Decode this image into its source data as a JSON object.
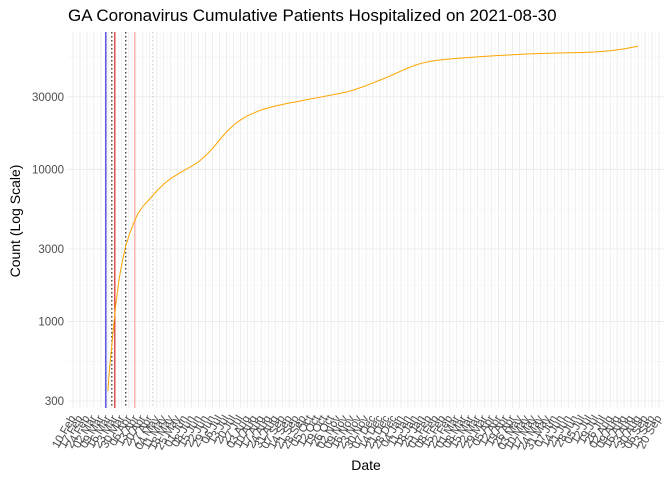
{
  "chart_data": {
    "type": "line",
    "title": "GA Coronavirus Cumulative Patients Hospitalized on 2021-08-30",
    "xlabel": "Date",
    "ylabel": "Count (Log Scale)",
    "y_scale": "log",
    "ylim": [
      270,
      80000
    ],
    "xlim": [
      "2020-02-05",
      "2021-09-25"
    ],
    "yticks": [
      300,
      1000,
      3000,
      10000,
      30000
    ],
    "ytick_labels": [
      "300",
      "1000",
      "3000",
      "10000",
      "30000"
    ],
    "x_tick_dates": [
      "2020-02-10",
      "2020-02-17",
      "2020-02-24",
      "2020-03-02",
      "2020-03-09",
      "2020-03-16",
      "2020-03-23",
      "2020-03-30",
      "2020-04-06",
      "2020-04-13",
      "2020-04-20",
      "2020-04-27",
      "2020-05-04",
      "2020-05-11",
      "2020-05-18",
      "2020-05-25",
      "2020-06-01",
      "2020-06-08",
      "2020-06-15",
      "2020-06-22",
      "2020-06-29",
      "2020-07-06",
      "2020-07-13",
      "2020-07-20",
      "2020-07-27",
      "2020-08-03",
      "2020-08-10",
      "2020-08-17",
      "2020-08-24",
      "2020-08-31",
      "2020-09-07",
      "2020-09-14",
      "2020-09-21",
      "2020-09-28",
      "2020-10-05",
      "2020-10-12",
      "2020-10-19",
      "2020-10-26",
      "2020-11-02",
      "2020-11-09",
      "2020-11-16",
      "2020-11-23",
      "2020-11-30",
      "2020-12-07",
      "2020-12-14",
      "2020-12-21",
      "2020-12-28",
      "2021-01-04",
      "2021-01-11",
      "2021-01-18",
      "2021-01-25",
      "2021-02-01",
      "2021-02-08",
      "2021-02-15",
      "2021-02-22",
      "2021-03-01",
      "2021-03-08",
      "2021-03-15",
      "2021-03-22",
      "2021-03-29",
      "2021-04-05",
      "2021-04-12",
      "2021-04-19",
      "2021-04-26",
      "2021-05-03",
      "2021-05-10",
      "2021-05-17",
      "2021-05-24",
      "2021-05-31",
      "2021-06-07",
      "2021-06-14",
      "2021-06-21",
      "2021-06-28",
      "2021-07-05",
      "2021-07-12",
      "2021-07-19",
      "2021-07-26",
      "2021-08-02",
      "2021-08-09",
      "2021-08-16",
      "2021-08-23",
      "2021-08-30",
      "2021-09-06",
      "2021-09-13",
      "2021-09-20"
    ],
    "x_tick_labels": [
      "10 Feb",
      "17 Feb",
      "24 Feb",
      "02 Mar",
      "09 Mar",
      "16 Mar",
      "23 Mar",
      "30 Mar",
      "06 Apr",
      "13 Apr",
      "20 Apr",
      "27 Apr",
      "04 May",
      "11 May",
      "18 May",
      "25 May",
      "01 Jun",
      "08 Jun",
      "15 Jun",
      "22 Jun",
      "29 Jun",
      "06 Jul",
      "13 Jul",
      "20 Jul",
      "27 Jul",
      "03 Aug",
      "10 Aug",
      "17 Aug",
      "24 Aug",
      "31 Aug",
      "07 Sep",
      "14 Sep",
      "21 Sep",
      "28 Sep",
      "05 Oct",
      "12 Oct",
      "19 Oct",
      "26 Oct",
      "02 Nov",
      "09 Nov",
      "16 Nov",
      "23 Nov",
      "30 Nov",
      "07 Dec",
      "14 Dec",
      "21 Dec",
      "28 Dec",
      "04 Jan",
      "11 Jan",
      "18 Jan",
      "25 Jan",
      "01 Feb",
      "08 Feb",
      "15 Feb",
      "22 Feb",
      "01 Mar",
      "08 Mar",
      "15 Mar",
      "22 Mar",
      "29 Mar",
      "05 Apr",
      "12 Apr",
      "19 Apr",
      "26 Apr",
      "03 May",
      "10 May",
      "17 May",
      "24 May",
      "31 May",
      "07 Jun",
      "14 Jun",
      "21 Jun",
      "28 Jun",
      "05 Jul",
      "12 Jul",
      "19 Jul",
      "26 Jul",
      "02 Aug",
      "09 Aug",
      "16 Aug",
      "23 Aug",
      "30 Aug",
      "06 Sep",
      "13 Sep",
      "20 Sep"
    ],
    "grid": true,
    "legend": "none",
    "series": [
      {
        "color": "#FFA500",
        "points": [
          [
            "2020-03-16",
            350
          ],
          [
            "2020-03-18",
            520
          ],
          [
            "2020-03-20",
            700
          ],
          [
            "2020-03-22",
            960
          ],
          [
            "2020-03-24",
            1300
          ],
          [
            "2020-03-27",
            1850
          ],
          [
            "2020-03-30",
            2400
          ],
          [
            "2020-04-03",
            3150
          ],
          [
            "2020-04-07",
            3800
          ],
          [
            "2020-04-11",
            4450
          ],
          [
            "2020-04-15",
            5100
          ],
          [
            "2020-04-20",
            5700
          ],
          [
            "2020-04-27",
            6400
          ],
          [
            "2020-05-04",
            7200
          ],
          [
            "2020-05-11",
            8000
          ],
          [
            "2020-05-18",
            8700
          ],
          [
            "2020-05-25",
            9300
          ],
          [
            "2020-06-01",
            9900
          ],
          [
            "2020-06-08",
            10500
          ],
          [
            "2020-06-15",
            11200
          ],
          [
            "2020-06-22",
            12300
          ],
          [
            "2020-06-29",
            13700
          ],
          [
            "2020-07-06",
            15600
          ],
          [
            "2020-07-13",
            17600
          ],
          [
            "2020-07-20",
            19500
          ],
          [
            "2020-07-27",
            21100
          ],
          [
            "2020-08-03",
            22500
          ],
          [
            "2020-08-10",
            23600
          ],
          [
            "2020-08-17",
            24600
          ],
          [
            "2020-08-24",
            25400
          ],
          [
            "2020-08-31",
            26100
          ],
          [
            "2020-09-07",
            26700
          ],
          [
            "2020-09-14",
            27300
          ],
          [
            "2020-09-21",
            27800
          ],
          [
            "2020-09-28",
            28400
          ],
          [
            "2020-10-05",
            29000
          ],
          [
            "2020-10-12",
            29600
          ],
          [
            "2020-10-19",
            30200
          ],
          [
            "2020-10-26",
            30800
          ],
          [
            "2020-11-02",
            31400
          ],
          [
            "2020-11-09",
            32100
          ],
          [
            "2020-11-16",
            33000
          ],
          [
            "2020-11-23",
            34200
          ],
          [
            "2020-11-30",
            35500
          ],
          [
            "2020-12-07",
            37000
          ],
          [
            "2020-12-14",
            38600
          ],
          [
            "2020-12-21",
            40300
          ],
          [
            "2020-12-28",
            42200
          ],
          [
            "2021-01-04",
            44300
          ],
          [
            "2021-01-11",
            46400
          ],
          [
            "2021-01-18",
            48300
          ],
          [
            "2021-01-25",
            49900
          ],
          [
            "2021-02-01",
            51100
          ],
          [
            "2021-02-08",
            52000
          ],
          [
            "2021-02-15",
            52700
          ],
          [
            "2021-02-22",
            53200
          ],
          [
            "2021-03-01",
            53700
          ],
          [
            "2021-03-15",
            54500
          ],
          [
            "2021-03-29",
            55300
          ],
          [
            "2021-04-12",
            56000
          ],
          [
            "2021-04-26",
            56700
          ],
          [
            "2021-05-10",
            57300
          ],
          [
            "2021-05-24",
            57800
          ],
          [
            "2021-06-07",
            58100
          ],
          [
            "2021-06-21",
            58400
          ],
          [
            "2021-07-05",
            58700
          ],
          [
            "2021-07-19",
            59200
          ],
          [
            "2021-08-02",
            60200
          ],
          [
            "2021-08-16",
            62000
          ],
          [
            "2021-08-30",
            64500
          ]
        ]
      }
    ],
    "vlines": [
      {
        "date": "2020-03-14",
        "color": "#0000CC",
        "style": "solid"
      },
      {
        "date": "2020-03-20",
        "color": "#000000",
        "style": "dotted"
      },
      {
        "date": "2020-03-23",
        "color": "#CC0000",
        "style": "solid"
      },
      {
        "date": "2020-04-03",
        "color": "#000000",
        "style": "dotted"
      },
      {
        "date": "2020-04-12",
        "color": "#FF9999",
        "style": "solid"
      },
      {
        "date": "2020-04-30",
        "color": "#CCCCCC",
        "style": "dotted"
      }
    ]
  }
}
